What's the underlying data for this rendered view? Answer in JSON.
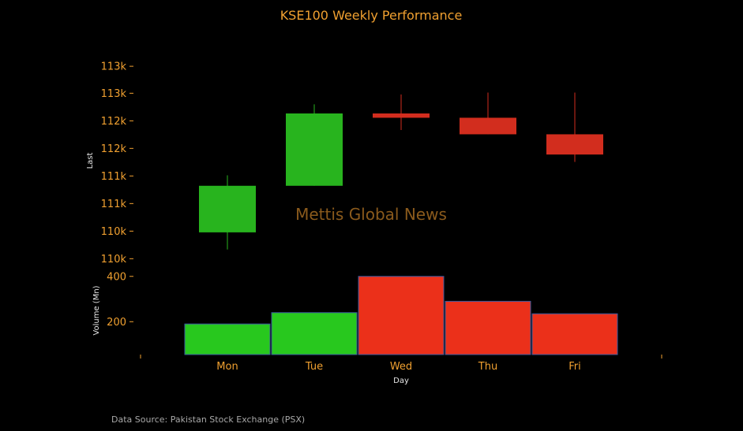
{
  "chart_data": {
    "type": "candlestick",
    "title": "KSE100 Weekly Performance",
    "categories": [
      "Mon",
      "Tue",
      "Wed",
      "Thu",
      "Fri"
    ],
    "price": {
      "ylabel": "Last",
      "tick_labels": [
        "110k",
        "110k",
        "111k",
        "111k",
        "112k",
        "112k",
        "113k",
        "113k"
      ],
      "ylim": [
        109800,
        113400
      ],
      "candles": [
        {
          "day": "Mon",
          "open": 110380,
          "close": 111140,
          "high": 111310,
          "low": 110100,
          "direction": "up"
        },
        {
          "day": "Tue",
          "open": 111140,
          "close": 112320,
          "high": 112470,
          "low": 111140,
          "direction": "up"
        },
        {
          "day": "Wed",
          "open": 112320,
          "close": 112250,
          "high": 112630,
          "low": 112050,
          "direction": "down"
        },
        {
          "day": "Thu",
          "open": 112250,
          "close": 111980,
          "high": 112660,
          "low": 111980,
          "direction": "down"
        },
        {
          "day": "Fri",
          "open": 111980,
          "close": 111650,
          "high": 112660,
          "low": 111530,
          "direction": "down"
        }
      ]
    },
    "volume": {
      "ylabel": "Volume (Mn)",
      "tick_labels": [
        "200",
        "400"
      ],
      "ylim": [
        55,
        420
      ],
      "values": [
        190,
        240,
        400,
        290,
        235
      ],
      "direction": [
        "up",
        "up",
        "down",
        "down",
        "down"
      ]
    },
    "xlabel": "Day",
    "watermark": "Mettis Global News",
    "source_note": "Data Source: Pakistan Stock Exchange (PSX)",
    "colors": {
      "up": "#28b41e",
      "up_volume": "#28c81e",
      "down": "#d22d1e",
      "down_volume": "#eb301a",
      "text_accent": "#f0a030",
      "background": "#000000"
    }
  }
}
